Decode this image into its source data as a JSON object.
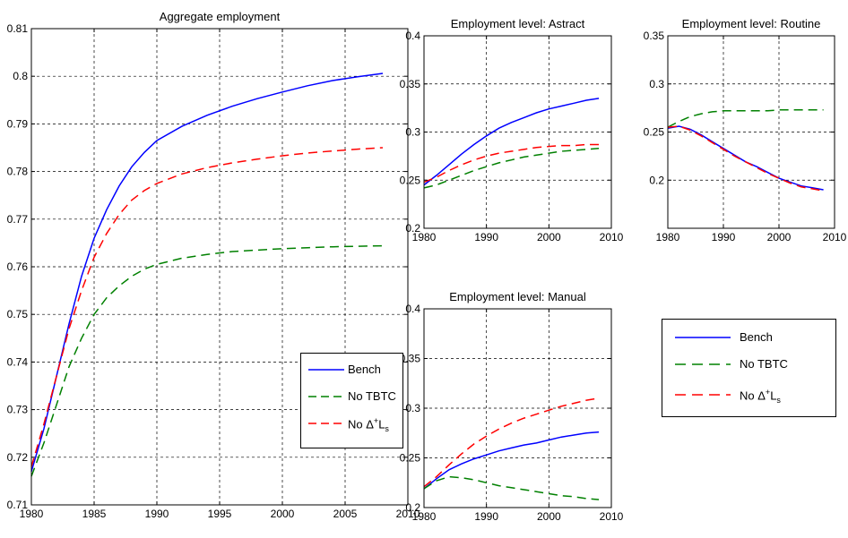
{
  "chart_data": [
    {
      "id": "aggregate",
      "type": "line",
      "title": "Aggregate employment",
      "xlim": [
        1980,
        2010
      ],
      "ylim": [
        0.71,
        0.81
      ],
      "xticks": [
        1980,
        1985,
        1990,
        1995,
        2000,
        2005,
        2010
      ],
      "yticks": [
        0.71,
        0.72,
        0.73,
        0.74,
        0.75,
        0.76,
        0.77,
        0.78,
        0.79,
        0.8,
        0.81
      ],
      "ytick_labels": [
        "0.71",
        "0.72",
        "0.73",
        "0.74",
        "0.75",
        "0.76",
        "0.77",
        "0.78",
        "0.79",
        "0.8",
        "0.81"
      ],
      "grid": true,
      "legend": "bottom-right",
      "series": [
        {
          "name": "Bench",
          "color": "#0000ff",
          "dash": "solid",
          "x": [
            1980,
            1981,
            1982,
            1983,
            1984,
            1985,
            1986,
            1987,
            1988,
            1989,
            1990,
            1992,
            1994,
            1996,
            1998,
            2000,
            2002,
            2004,
            2006,
            2008
          ],
          "y": [
            0.717,
            0.726,
            0.737,
            0.748,
            0.758,
            0.766,
            0.772,
            0.777,
            0.781,
            0.784,
            0.7865,
            0.7895,
            0.7918,
            0.7937,
            0.7953,
            0.7967,
            0.798,
            0.7991,
            0.7999,
            0.8006
          ]
        },
        {
          "name": "No TBTC",
          "color": "#008000",
          "dash": "dashed",
          "x": [
            1980,
            1981,
            1982,
            1983,
            1984,
            1985,
            1986,
            1987,
            1988,
            1989,
            1990,
            1992,
            1994,
            1996,
            1998,
            2000,
            2002,
            2004,
            2006,
            2008
          ],
          "y": [
            0.716,
            0.723,
            0.731,
            0.739,
            0.745,
            0.75,
            0.7535,
            0.756,
            0.758,
            0.7595,
            0.7605,
            0.7618,
            0.7626,
            0.7632,
            0.7635,
            0.7638,
            0.764,
            0.7642,
            0.7643,
            0.7644
          ]
        },
        {
          "name": "No Δ+Ls",
          "color": "#ff0000",
          "dash": "dashed",
          "x": [
            1980,
            1981,
            1982,
            1983,
            1984,
            1985,
            1986,
            1987,
            1988,
            1989,
            1990,
            1992,
            1994,
            1996,
            1998,
            2000,
            2002,
            2004,
            2006,
            2008
          ],
          "y": [
            0.718,
            0.727,
            0.737,
            0.747,
            0.755,
            0.762,
            0.767,
            0.771,
            0.774,
            0.776,
            0.7775,
            0.7795,
            0.7808,
            0.7818,
            0.7826,
            0.7833,
            0.7839,
            0.7843,
            0.7847,
            0.785
          ]
        }
      ]
    },
    {
      "id": "abstract",
      "type": "line",
      "title": "Employment level: Astract",
      "xlim": [
        1980,
        2010
      ],
      "ylim": [
        0.2,
        0.4
      ],
      "xticks": [
        1980,
        1990,
        2000,
        2010
      ],
      "yticks": [
        0.2,
        0.25,
        0.3,
        0.35,
        0.4
      ],
      "ytick_labels": [
        "0.2",
        "0.25",
        "0.3",
        "0.35",
        "0.4"
      ],
      "grid": true,
      "series": [
        {
          "name": "Bench",
          "color": "#0000ff",
          "dash": "solid",
          "x": [
            1980,
            1982,
            1984,
            1986,
            1988,
            1990,
            1992,
            1994,
            1996,
            1998,
            2000,
            2002,
            2004,
            2006,
            2008
          ],
          "y": [
            0.245,
            0.255,
            0.266,
            0.277,
            0.287,
            0.296,
            0.304,
            0.31,
            0.315,
            0.32,
            0.324,
            0.327,
            0.33,
            0.333,
            0.335
          ]
        },
        {
          "name": "No TBTC",
          "color": "#008000",
          "dash": "dashed",
          "x": [
            1980,
            1982,
            1984,
            1986,
            1988,
            1990,
            1992,
            1994,
            1996,
            1998,
            2000,
            2002,
            2004,
            2006,
            2008
          ],
          "y": [
            0.242,
            0.245,
            0.25,
            0.255,
            0.26,
            0.264,
            0.268,
            0.271,
            0.274,
            0.276,
            0.278,
            0.28,
            0.281,
            0.282,
            0.283
          ]
        },
        {
          "name": "No Δ+Ls",
          "color": "#ff0000",
          "dash": "dashed",
          "x": [
            1980,
            1982,
            1984,
            1986,
            1988,
            1990,
            1992,
            1994,
            1996,
            1998,
            2000,
            2002,
            2004,
            2006,
            2008
          ],
          "y": [
            0.248,
            0.253,
            0.26,
            0.266,
            0.271,
            0.275,
            0.278,
            0.28,
            0.282,
            0.284,
            0.285,
            0.286,
            0.286,
            0.287,
            0.287
          ]
        }
      ]
    },
    {
      "id": "routine",
      "type": "line",
      "title": "Employment level: Routine",
      "xlim": [
        1980,
        2010
      ],
      "ylim": [
        0.15,
        0.35
      ],
      "xticks": [
        1980,
        1990,
        2000,
        2010
      ],
      "yticks": [
        0.2,
        0.25,
        0.3,
        0.35
      ],
      "ytick_labels": [
        "0.2",
        "0.25",
        "0.3",
        "0.35"
      ],
      "grid": true,
      "series": [
        {
          "name": "Bench",
          "color": "#0000ff",
          "dash": "solid",
          "x": [
            1980,
            1982,
            1984,
            1986,
            1988,
            1990,
            1992,
            1994,
            1996,
            1998,
            2000,
            2002,
            2004,
            2006,
            2008
          ],
          "y": [
            0.254,
            0.256,
            0.253,
            0.247,
            0.24,
            0.233,
            0.226,
            0.219,
            0.214,
            0.208,
            0.202,
            0.198,
            0.194,
            0.192,
            0.19
          ]
        },
        {
          "name": "No TBTC",
          "color": "#008000",
          "dash": "dashed",
          "x": [
            1980,
            1982,
            1984,
            1986,
            1988,
            1990,
            1992,
            1994,
            1996,
            1998,
            2000,
            2002,
            2004,
            2006,
            2008
          ],
          "y": [
            0.255,
            0.261,
            0.266,
            0.269,
            0.271,
            0.272,
            0.272,
            0.272,
            0.272,
            0.272,
            0.273,
            0.273,
            0.273,
            0.273,
            0.273
          ]
        },
        {
          "name": "No Δ+Ls",
          "color": "#ff0000",
          "dash": "dashed",
          "x": [
            1980,
            1982,
            1984,
            1986,
            1988,
            1990,
            1992,
            1994,
            1996,
            1998,
            2000,
            2002,
            2004,
            2006,
            2008
          ],
          "y": [
            0.255,
            0.256,
            0.252,
            0.246,
            0.239,
            0.232,
            0.225,
            0.219,
            0.213,
            0.207,
            0.202,
            0.197,
            0.193,
            0.191,
            0.189
          ]
        }
      ]
    },
    {
      "id": "manual",
      "type": "line",
      "title": "Employment level: Manual",
      "xlim": [
        1980,
        2010
      ],
      "ylim": [
        0.2,
        0.4
      ],
      "xticks": [
        1980,
        1990,
        2000,
        2010
      ],
      "yticks": [
        0.2,
        0.25,
        0.3,
        0.35,
        0.4
      ],
      "ytick_labels": [
        "0.2",
        "0.25",
        "0.3",
        "0.35",
        "0.4"
      ],
      "grid": true,
      "series": [
        {
          "name": "Bench",
          "color": "#0000ff",
          "dash": "solid",
          "x": [
            1980,
            1982,
            1984,
            1986,
            1988,
            1990,
            1992,
            1994,
            1996,
            1998,
            2000,
            2002,
            2004,
            2006,
            2008
          ],
          "y": [
            0.219,
            0.229,
            0.238,
            0.244,
            0.249,
            0.253,
            0.257,
            0.26,
            0.263,
            0.265,
            0.268,
            0.271,
            0.273,
            0.275,
            0.276
          ]
        },
        {
          "name": "No TBTC",
          "color": "#008000",
          "dash": "dashed",
          "x": [
            1980,
            1982,
            1984,
            1986,
            1988,
            1990,
            1992,
            1994,
            1996,
            1998,
            2000,
            2002,
            2004,
            2006,
            2008
          ],
          "y": [
            0.219,
            0.227,
            0.231,
            0.23,
            0.228,
            0.225,
            0.222,
            0.22,
            0.218,
            0.216,
            0.214,
            0.212,
            0.211,
            0.209,
            0.208
          ]
        },
        {
          "name": "No Δ+Ls",
          "color": "#ff0000",
          "dash": "dashed",
          "x": [
            1980,
            1982,
            1984,
            1986,
            1988,
            1990,
            1992,
            1994,
            1996,
            1998,
            2000,
            2002,
            2004,
            2006,
            2008
          ],
          "y": [
            0.221,
            0.231,
            0.243,
            0.254,
            0.264,
            0.272,
            0.279,
            0.285,
            0.29,
            0.294,
            0.298,
            0.302,
            0.305,
            0.308,
            0.31
          ]
        }
      ]
    }
  ],
  "legend_boxes": [
    {
      "id": "legend-aggregate",
      "entries": [
        {
          "label": "Bench",
          "color": "#0000ff",
          "dash": "solid"
        },
        {
          "label": "No TBTC",
          "color": "#008000",
          "dash": "dashed"
        },
        {
          "label_prefix": "No Δ",
          "label_sup": "+",
          "label_mid": "L",
          "label_sub": "s",
          "color": "#ff0000",
          "dash": "dashed"
        }
      ]
    },
    {
      "id": "legend-shared",
      "entries": [
        {
          "label": "Bench",
          "color": "#0000ff",
          "dash": "solid"
        },
        {
          "label": "No TBTC",
          "color": "#008000",
          "dash": "dashed"
        },
        {
          "label_prefix": "No Δ",
          "label_sup": "+",
          "label_mid": "L",
          "label_sub": "s",
          "color": "#ff0000",
          "dash": "dashed"
        }
      ]
    }
  ]
}
